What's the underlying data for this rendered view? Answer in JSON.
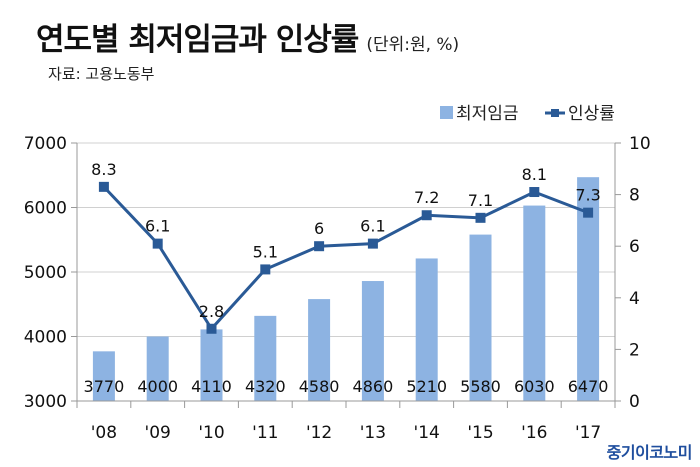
{
  "header": {
    "title": "연도별 최저임금과 인상률",
    "unit": "(단위:원, %)",
    "source": "자료: 고용노동부"
  },
  "brand": "중기이코노미",
  "colors": {
    "bar": "#8db3e2",
    "line": "#2a5a96",
    "grid": "#d0d0d0",
    "axis": "#999999",
    "brand": "#1f4e9e"
  },
  "chart_data": {
    "type": "bar+line",
    "title": "연도별 최저임금과 인상률",
    "subtitle": "(단위:원, %)",
    "categories": [
      "'08",
      "'09",
      "'10",
      "'11",
      "'12",
      "'13",
      "'14",
      "'15",
      "'16",
      "'17"
    ],
    "series": [
      {
        "name": "최저임금",
        "type": "bar",
        "axis": "left",
        "values": [
          3770,
          4000,
          4110,
          4320,
          4580,
          4860,
          5210,
          5580,
          6030,
          6470
        ],
        "labels": [
          "3770",
          "4000",
          "4110",
          "4320",
          "4580",
          "4860",
          "5210",
          "5580",
          "6030",
          "6470"
        ]
      },
      {
        "name": "인상률",
        "type": "line",
        "axis": "right",
        "marker": "square",
        "values": [
          8.3,
          6.1,
          2.8,
          5.1,
          6.0,
          6.1,
          7.2,
          7.1,
          8.1,
          7.3
        ],
        "labels": [
          "8.3",
          "6.1",
          "2.8",
          "5.1",
          "6",
          "6.1",
          "7.2",
          "7.1",
          "8.1",
          "7.3"
        ]
      }
    ],
    "left_axis": {
      "ylim": [
        3000,
        7000
      ],
      "ticks": [
        "3000",
        "4000",
        "5000",
        "6000",
        "7000"
      ]
    },
    "right_axis": {
      "ylim": [
        0,
        10
      ],
      "ticks": [
        "0",
        "2",
        "4",
        "6",
        "8",
        "10"
      ]
    },
    "xlabel": "",
    "ylabel": "",
    "grid": true,
    "legend": {
      "position": "top-right",
      "entries": [
        "최저임금",
        "인상률"
      ]
    }
  }
}
